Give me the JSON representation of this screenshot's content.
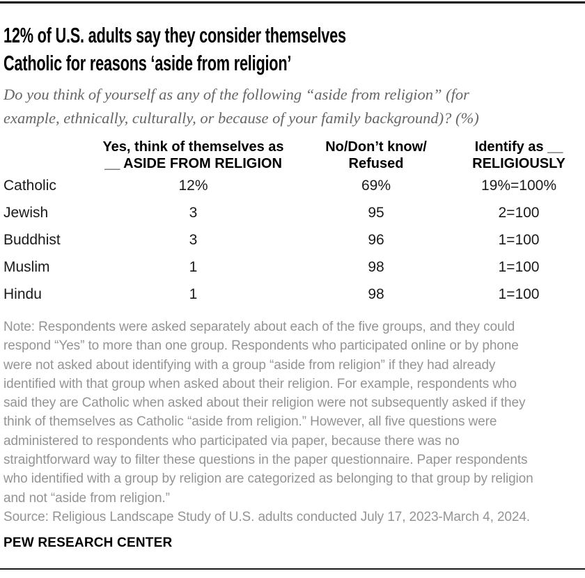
{
  "colors": {
    "title": "#000000",
    "subtitle_gray": "#666666",
    "note_gray": "#949494",
    "rule_black": "#000000"
  },
  "header": {
    "title": "12% of U.S. adults say they consider themselves\nCatholic for reasons ‘aside from religion’",
    "subtitle": "Do you think of yourself as any of the following “aside from religion” (for\nexample, ethnically, culturally, or because of your family background)? (%)"
  },
  "table": {
    "columns": [
      "Yes, think of themselves as\n__ ASIDE FROM RELIGION",
      "No/Don’t know/\nRefused",
      "Identify as __\nRELIGIOUSLY"
    ],
    "rows": [
      {
        "label": "Catholic",
        "values": [
          "12%",
          "69%",
          "19%=100%"
        ]
      },
      {
        "label": "Jewish",
        "values": [
          "3",
          "95",
          "2=100"
        ]
      },
      {
        "label": "Buddhist",
        "values": [
          "3",
          "96",
          "1=100"
        ]
      },
      {
        "label": "Muslim",
        "values": [
          "1",
          "98",
          "1=100"
        ]
      },
      {
        "label": "Hindu",
        "values": [
          "1",
          "98",
          "1=100"
        ]
      }
    ]
  },
  "note": "Note: Respondents were asked separately about each of the five groups, and they could\nrespond “Yes” to more than one group. Respondents who participated online or by phone\nwere not asked about identifying with a group “aside from religion” if they had already\nidentified with that group when asked about their religion. For example, respondents who\nsaid they are Catholic when asked about their religion were not subsequently asked if they\nthink of themselves as Catholic “aside from religion.” However, all five questions were\nadministered to respondents who participated via paper, because there was no\nstraightforward way to filter these questions in the paper questionnaire. Paper respondents\nwho identified with a group by religion are categorized as belonging to that group by religion\nand not “aside from religion.”",
  "source": "Source: Religious Landscape Study of U.S. adults conducted July 17, 2023-March 4, 2024.",
  "footer": "PEW RESEARCH CENTER",
  "chart_data": {
    "type": "table",
    "title": "12% of U.S. adults say they consider themselves Catholic for reasons ‘aside from religion’",
    "subtitle": "Do you think of yourself as any of the following “aside from religion” (for example, ethnically, culturally, or because of your family background)? (%)",
    "columns": [
      "Yes, think of themselves as __ ASIDE FROM RELIGION",
      "No/Don’t know/Refused",
      "Identify as __ RELIGIOUSLY"
    ],
    "categories": [
      "Catholic",
      "Jewish",
      "Buddhist",
      "Muslim",
      "Hindu"
    ],
    "series": [
      {
        "name": "Yes, think of themselves as __ aside from religion (%)",
        "values": [
          12,
          3,
          3,
          1,
          1
        ]
      },
      {
        "name": "No/Don’t know/Refused (%)",
        "values": [
          69,
          95,
          96,
          98,
          98
        ]
      },
      {
        "name": "Identify as __ religiously (%)",
        "values": [
          19,
          2,
          1,
          1,
          1
        ]
      }
    ],
    "row_totals": [
      "19%=100%",
      "2=100",
      "1=100",
      "1=100",
      "1=100"
    ]
  }
}
